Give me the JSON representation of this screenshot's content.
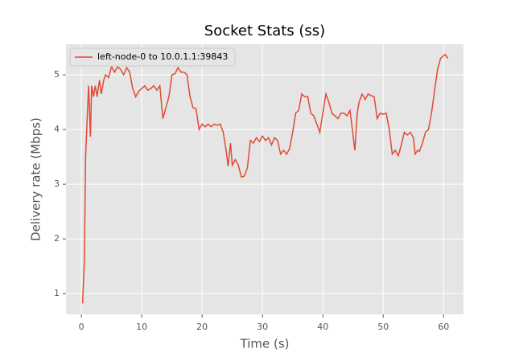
{
  "chart_data": {
    "type": "line",
    "title": "Socket Stats (ss)",
    "x_label": "Time (s)",
    "y_label": "Delivery rate (Mbps)",
    "x": [
      0.2,
      0.5,
      0.7,
      1.0,
      1.2,
      1.5,
      1.7,
      2.0,
      2.3,
      2.6,
      3.0,
      3.3,
      3.7,
      4.0,
      4.5,
      5.0,
      5.5,
      6.0,
      6.5,
      7.0,
      7.5,
      8.0,
      8.5,
      9.0,
      9.5,
      10.0,
      10.5,
      11.0,
      11.5,
      12.0,
      12.5,
      13.0,
      13.5,
      14.0,
      14.5,
      15.0,
      15.5,
      16.0,
      16.5,
      17.0,
      17.5,
      18.0,
      18.5,
      19.0,
      19.5,
      20.0,
      20.5,
      21.0,
      21.5,
      22.0,
      22.5,
      23.0,
      23.5,
      24.0,
      24.3,
      24.7,
      25.0,
      25.5,
      26.0,
      26.5,
      27.0,
      27.5,
      28.0,
      28.5,
      29.0,
      29.5,
      30.0,
      30.5,
      31.0,
      31.5,
      32.0,
      32.5,
      33.0,
      33.5,
      34.0,
      34.5,
      35.0,
      35.5,
      36.0,
      36.5,
      37.0,
      37.5,
      38.0,
      38.5,
      39.0,
      39.5,
      40.0,
      40.5,
      41.0,
      41.5,
      42.0,
      42.5,
      43.0,
      43.5,
      44.0,
      44.5,
      45.0,
      45.3,
      45.7,
      46.0,
      46.5,
      47.0,
      47.5,
      48.0,
      48.5,
      49.0,
      49.5,
      50.0,
      50.5,
      51.0,
      51.5,
      52.0,
      52.5,
      53.0,
      53.5,
      54.0,
      54.5,
      55.0,
      55.3,
      55.7,
      56.0,
      56.5,
      57.0,
      57.5,
      58.0,
      58.5,
      59.0,
      59.5,
      60.0,
      60.3,
      60.7
    ],
    "series": [
      {
        "name": "left-node-0 to 10.0.1.1:39843",
        "color": "#e24a33",
        "values": [
          0.82,
          1.6,
          3.5,
          4.3,
          4.8,
          3.87,
          4.8,
          4.6,
          4.8,
          4.6,
          4.9,
          4.65,
          4.9,
          5.0,
          4.95,
          5.15,
          5.05,
          5.15,
          5.1,
          5.0,
          5.13,
          5.05,
          4.75,
          4.6,
          4.7,
          4.75,
          4.8,
          4.72,
          4.75,
          4.8,
          4.72,
          4.8,
          4.2,
          4.4,
          4.6,
          5.0,
          5.02,
          5.13,
          5.05,
          5.05,
          5.0,
          4.6,
          4.4,
          4.38,
          4.0,
          4.1,
          4.05,
          4.1,
          4.05,
          4.1,
          4.08,
          4.1,
          3.95,
          3.6,
          3.33,
          3.75,
          3.35,
          3.45,
          3.35,
          3.13,
          3.15,
          3.3,
          3.8,
          3.75,
          3.85,
          3.78,
          3.88,
          3.8,
          3.85,
          3.72,
          3.85,
          3.8,
          3.55,
          3.62,
          3.55,
          3.65,
          3.95,
          4.3,
          4.35,
          4.65,
          4.6,
          4.6,
          4.3,
          4.25,
          4.1,
          3.95,
          4.3,
          4.65,
          4.5,
          4.3,
          4.25,
          4.2,
          4.3,
          4.3,
          4.25,
          4.35,
          3.9,
          3.62,
          4.3,
          4.5,
          4.65,
          4.55,
          4.65,
          4.62,
          4.6,
          4.2,
          4.3,
          4.28,
          4.3,
          4.0,
          3.55,
          3.62,
          3.52,
          3.72,
          3.95,
          3.9,
          3.95,
          3.85,
          3.55,
          3.62,
          3.6,
          3.75,
          3.95,
          4.0,
          4.3,
          4.7,
          5.1,
          5.3,
          5.35,
          5.37,
          5.3
        ]
      }
    ],
    "xlim": [
      -2.55,
      63.3
    ],
    "ylim": [
      0.62,
      5.56
    ],
    "xticks": [
      0,
      10,
      20,
      30,
      40,
      50,
      60
    ],
    "yticks": [
      1,
      2,
      3,
      4,
      5
    ],
    "grid": true,
    "legend": "upper left"
  }
}
